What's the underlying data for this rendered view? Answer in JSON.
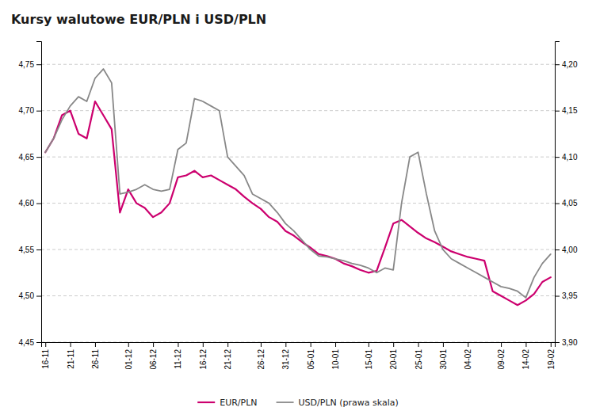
{
  "chart_data": {
    "type": "line",
    "title": "Kursy walutowe EUR/PLN i USD/PLN",
    "categories": [
      "16-11",
      null,
      null,
      "21-11",
      null,
      null,
      "26-11",
      null,
      null,
      null,
      "01-12",
      null,
      null,
      "06-12",
      null,
      null,
      "11-12",
      null,
      null,
      "16-12",
      null,
      null,
      "21-12",
      null,
      null,
      null,
      "26-12",
      null,
      null,
      "31-12",
      null,
      null,
      "05-01",
      null,
      null,
      "10-01",
      null,
      null,
      null,
      "15-01",
      null,
      null,
      "20-01",
      null,
      null,
      "25-01",
      null,
      null,
      "30-01",
      null,
      null,
      "04-02",
      null,
      null,
      null,
      "09-02",
      null,
      null,
      "14-02",
      null,
      null,
      "19-02"
    ],
    "series": [
      {
        "name": "EUR/PLN",
        "color": "#cc006e",
        "values": [
          4.655,
          4.67,
          4.695,
          4.7,
          4.675,
          4.67,
          4.71,
          4.695,
          4.68,
          4.59,
          4.615,
          4.6,
          4.595,
          4.585,
          4.59,
          4.6,
          4.628,
          4.63,
          4.635,
          4.628,
          4.63,
          4.625,
          4.62,
          4.615,
          4.607,
          4.6,
          4.594,
          4.585,
          4.58,
          4.57,
          4.565,
          4.558,
          4.552,
          4.545,
          4.543,
          4.54,
          4.535,
          4.532,
          4.528,
          4.525,
          4.527,
          4.552,
          4.578,
          4.582,
          4.575,
          4.568,
          4.562,
          4.558,
          4.553,
          4.548,
          4.545,
          4.542,
          4.54,
          4.538,
          4.505,
          4.5,
          4.495,
          4.49,
          4.495,
          4.502,
          4.515,
          4.52
        ]
      },
      {
        "name": "USD/PLN (prawa skala)",
        "color": "#888888",
        "axis": "y2",
        "values": [
          4.105,
          4.12,
          4.14,
          4.155,
          4.165,
          4.16,
          4.185,
          4.195,
          4.18,
          4.06,
          4.062,
          4.065,
          4.07,
          4.065,
          4.063,
          4.065,
          4.108,
          4.115,
          4.163,
          4.16,
          4.155,
          4.15,
          4.1,
          4.09,
          4.08,
          4.06,
          4.055,
          4.05,
          4.04,
          4.028,
          4.02,
          4.01,
          4.0,
          3.993,
          3.992,
          3.99,
          3.988,
          3.985,
          3.983,
          3.98,
          3.975,
          3.98,
          3.978,
          4.05,
          4.1,
          4.105,
          4.06,
          4.02,
          4.0,
          3.99,
          3.985,
          3.98,
          3.975,
          3.97,
          3.965,
          3.96,
          3.958,
          3.955,
          3.948,
          3.97,
          3.985,
          3.995
        ]
      }
    ],
    "ylim": [
      4.45,
      4.775
    ],
    "yticks": [
      {
        "value": 4.45,
        "label": "4,45"
      },
      {
        "value": 4.5,
        "label": "4,50"
      },
      {
        "value": 4.55,
        "label": "4,55"
      },
      {
        "value": 4.6,
        "label": "4,60"
      },
      {
        "value": 4.65,
        "label": "4,65"
      },
      {
        "value": 4.7,
        "label": "4,70"
      },
      {
        "value": 4.75,
        "label": "4,75"
      }
    ],
    "y2lim": [
      3.9,
      4.225
    ],
    "y2ticks": [
      {
        "value": 3.9,
        "label": "3,90"
      },
      {
        "value": 3.95,
        "label": "3,95"
      },
      {
        "value": 4.0,
        "label": "4,00"
      },
      {
        "value": 4.05,
        "label": "4,05"
      },
      {
        "value": 4.1,
        "label": "4,10"
      },
      {
        "value": 4.15,
        "label": "4,15"
      },
      {
        "value": 4.2,
        "label": "4,20"
      }
    ],
    "grid": true,
    "legend": "bottom"
  }
}
